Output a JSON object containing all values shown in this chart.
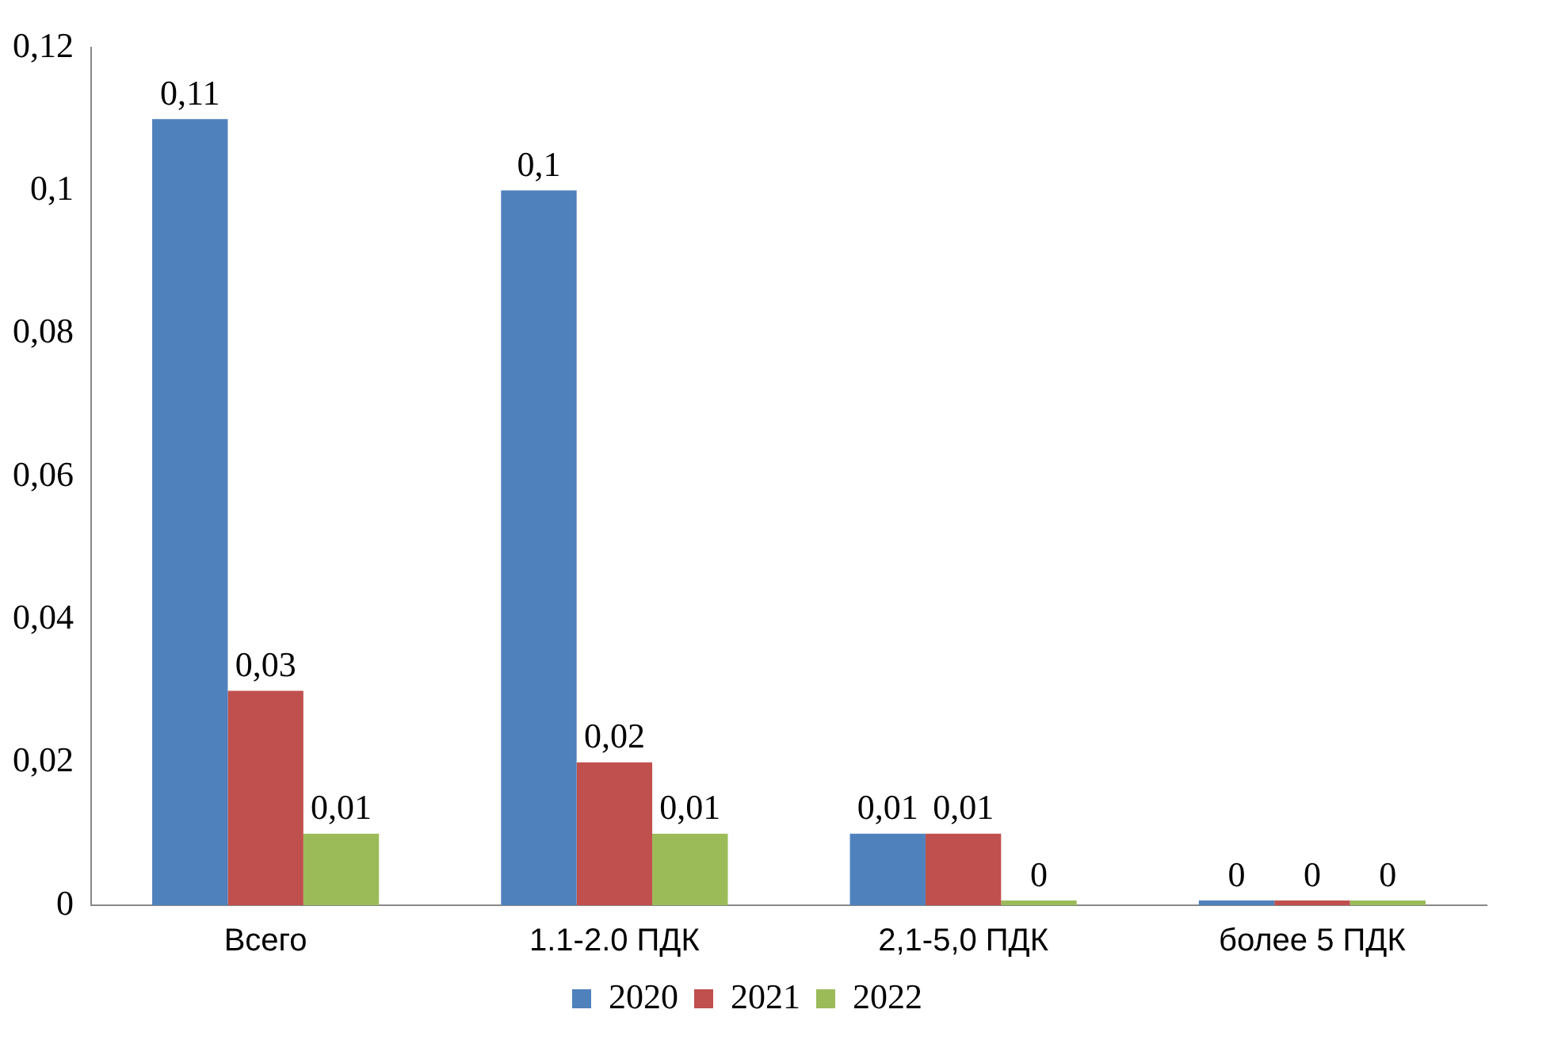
{
  "chart_data": {
    "type": "bar",
    "categories": [
      "Всего",
      "1.1-2.0 ПДК",
      "2,1-5,0 ПДК",
      "более 5 ПДК"
    ],
    "series": [
      {
        "name": "2020",
        "color": "#4f81bd",
        "values": [
          0.11,
          0.1,
          0.01,
          0
        ],
        "value_labels": [
          "0,11",
          "0,1",
          "0,01",
          "0"
        ]
      },
      {
        "name": "2021",
        "color": "#c0504d",
        "values": [
          0.03,
          0.02,
          0.01,
          0
        ],
        "value_labels": [
          "0,03",
          "0,02",
          "0,01",
          "0"
        ]
      },
      {
        "name": "2022",
        "color": "#9bbb59",
        "values": [
          0.01,
          0.01,
          0,
          0
        ],
        "value_labels": [
          "0,01",
          "0,01",
          "0",
          "0"
        ]
      }
    ],
    "ylim": [
      0,
      0.12
    ],
    "yticks": [
      {
        "value": 0,
        "label": "0"
      },
      {
        "value": 0.02,
        "label": "0,02"
      },
      {
        "value": 0.04,
        "label": "0,04"
      },
      {
        "value": 0.06,
        "label": "0,06"
      },
      {
        "value": 0.08,
        "label": "0,08"
      },
      {
        "value": 0.1,
        "label": "0,1"
      },
      {
        "value": 0.12,
        "label": "0,12"
      }
    ],
    "grid": false,
    "legend": "bottom"
  }
}
